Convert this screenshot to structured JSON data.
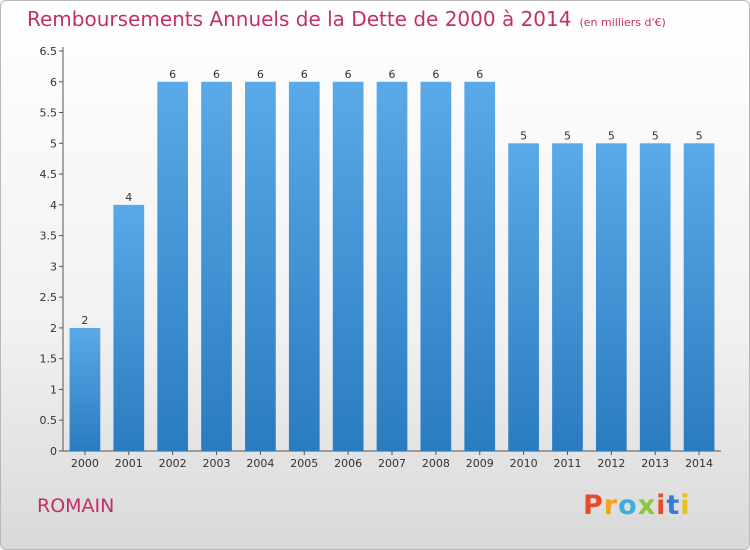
{
  "chart_data": {
    "type": "bar",
    "title": "Remboursements Annuels de la Dette de 2000 à 2014",
    "subtitle": "(en milliers d'€)",
    "categories": [
      "2000",
      "2001",
      "2002",
      "2003",
      "2004",
      "2005",
      "2006",
      "2007",
      "2008",
      "2009",
      "2010",
      "2011",
      "2012",
      "2013",
      "2014"
    ],
    "values": [
      2,
      4,
      6,
      6,
      6,
      6,
      6,
      6,
      6,
      6,
      5,
      5,
      5,
      5,
      5
    ],
    "data_labels": [
      "2",
      "4",
      "6",
      "6",
      "6",
      "6",
      "6",
      "6",
      "6",
      "6",
      "5",
      "5",
      "5",
      "5",
      "5"
    ],
    "y_ticks": [
      "0",
      "0.5",
      "1",
      "1.5",
      "2",
      "2.5",
      "3",
      "3.5",
      "4",
      "4.5",
      "5",
      "5.5",
      "6",
      "6.5"
    ],
    "ylim": [
      0,
      6.5
    ],
    "xlabel": "",
    "ylabel": "",
    "grid": false,
    "colors": {
      "bar_top": "#5aa9e8",
      "bar_bottom": "#2a7cc0",
      "title": "#c2306a",
      "axis": "#333333"
    }
  },
  "footer": {
    "commune": "ROMAIN",
    "brand": "Proxiti",
    "brand_colors": [
      "#e94b2a",
      "#f3a21b",
      "#3db0d8",
      "#8cc63f",
      "#e94b2a",
      "#3a7bd5",
      "#e9c21b"
    ]
  }
}
